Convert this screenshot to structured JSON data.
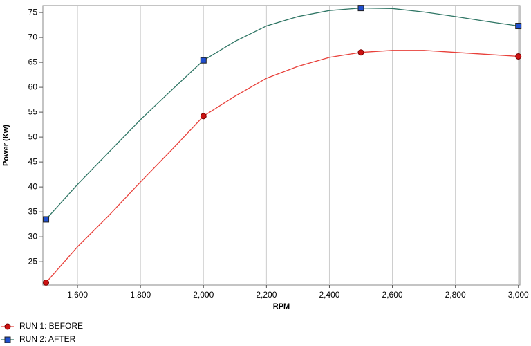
{
  "chart_data": {
    "type": "line",
    "x_label": "RPM",
    "y_label": "Power (Kw)",
    "x": [
      1500,
      1600,
      1700,
      1800,
      1900,
      2000,
      2100,
      2200,
      2300,
      2400,
      2500,
      2600,
      2700,
      2800,
      2900,
      3000
    ],
    "series": [
      {
        "name": "RUN 1: BEFORE",
        "color": "#e8403a",
        "marker": "circle",
        "marker_color": "#cc1111",
        "values": [
          20.8,
          28,
          34.3,
          41,
          47.5,
          54.2,
          58.2,
          61.8,
          64.2,
          66,
          67,
          67.4,
          67.4,
          67,
          66.6,
          66.2
        ]
      },
      {
        "name": "RUN 2: AFTER",
        "color": "#2e7564",
        "marker": "square",
        "marker_color": "#1f4fcf",
        "values": [
          33.5,
          40.5,
          47,
          53.5,
          59.5,
          65.4,
          69.2,
          72.3,
          74.2,
          75.4,
          75.9,
          75.8,
          75.1,
          74.2,
          73.2,
          72.3
        ]
      }
    ],
    "xlim": [
      1490,
      3005
    ],
    "ylim": [
      20.3,
      76.4
    ],
    "xticks": [
      {
        "value": 1600,
        "label": "1,600"
      },
      {
        "value": 1800,
        "label": "1,800"
      },
      {
        "value": 2000,
        "label": "2,000"
      },
      {
        "value": 2200,
        "label": "2,200"
      },
      {
        "value": 2400,
        "label": "2,400"
      },
      {
        "value": 2600,
        "label": "2,600"
      },
      {
        "value": 2800,
        "label": "2,800"
      },
      {
        "value": 3000,
        "label": "3,000"
      }
    ],
    "yticks": [
      25,
      30,
      35,
      40,
      45,
      50,
      55,
      60,
      65,
      70,
      75
    ],
    "grid": "x",
    "legend": "bottom"
  }
}
